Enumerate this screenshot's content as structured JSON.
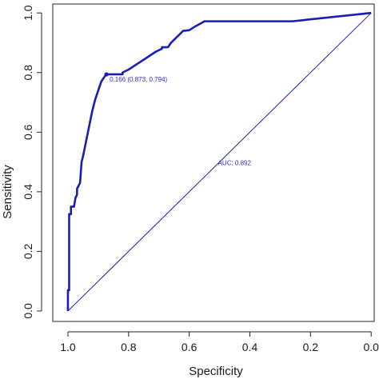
{
  "chart_data": {
    "type": "line",
    "xlabel": "Specificity",
    "ylabel": "Sensitivity",
    "xlim": [
      1.05,
      -0.01
    ],
    "ylim": [
      -0.035,
      1.03
    ],
    "x_reversed": true,
    "x_ticks": [
      1.0,
      0.8,
      0.6,
      0.4,
      0.2,
      0.0
    ],
    "x_tick_labels": [
      "1.0",
      "0.8",
      "0.6",
      "0.4",
      "0.2",
      "0.0"
    ],
    "y_ticks": [
      0.0,
      0.2,
      0.4,
      0.6,
      0.8,
      1.0
    ],
    "y_tick_labels": [
      "0.0",
      "0.2",
      "0.4",
      "0.6",
      "0.8",
      "1.0"
    ],
    "series": [
      {
        "color": "#1c1cb4",
        "x": [
          1.0,
          1.0,
          0.996,
          0.996,
          0.99,
          0.99,
          0.98,
          0.975,
          0.97,
          0.97,
          0.96,
          0.955,
          0.95,
          0.94,
          0.93,
          0.92,
          0.91,
          0.9,
          0.89,
          0.88,
          0.873,
          0.86,
          0.82,
          0.82,
          0.8,
          0.77,
          0.74,
          0.71,
          0.69,
          0.69,
          0.67,
          0.66,
          0.64,
          0.62,
          0.6,
          0.58,
          0.56,
          0.55,
          0.26,
          0.0
        ],
        "y": [
          0.0,
          0.07,
          0.07,
          0.325,
          0.325,
          0.35,
          0.35,
          0.38,
          0.39,
          0.41,
          0.43,
          0.5,
          0.52,
          0.57,
          0.62,
          0.67,
          0.71,
          0.74,
          0.77,
          0.785,
          0.794,
          0.794,
          0.794,
          0.8,
          0.81,
          0.83,
          0.85,
          0.87,
          0.88,
          0.885,
          0.885,
          0.9,
          0.92,
          0.94,
          0.942,
          0.955,
          0.966,
          0.972,
          0.972,
          1.0
        ]
      }
    ],
    "reference_line": {
      "x": [
        1.0,
        0.0
      ],
      "y": [
        0.0,
        1.0
      ],
      "color": "#1c1cb4"
    },
    "threshold_point": {
      "x": 0.873,
      "y": 0.794,
      "label": "0.166 (0.873, 0.794)"
    },
    "auc_label": {
      "x": 0.5,
      "y": 0.49,
      "text": "AUC: 0.892"
    },
    "grid": false
  }
}
